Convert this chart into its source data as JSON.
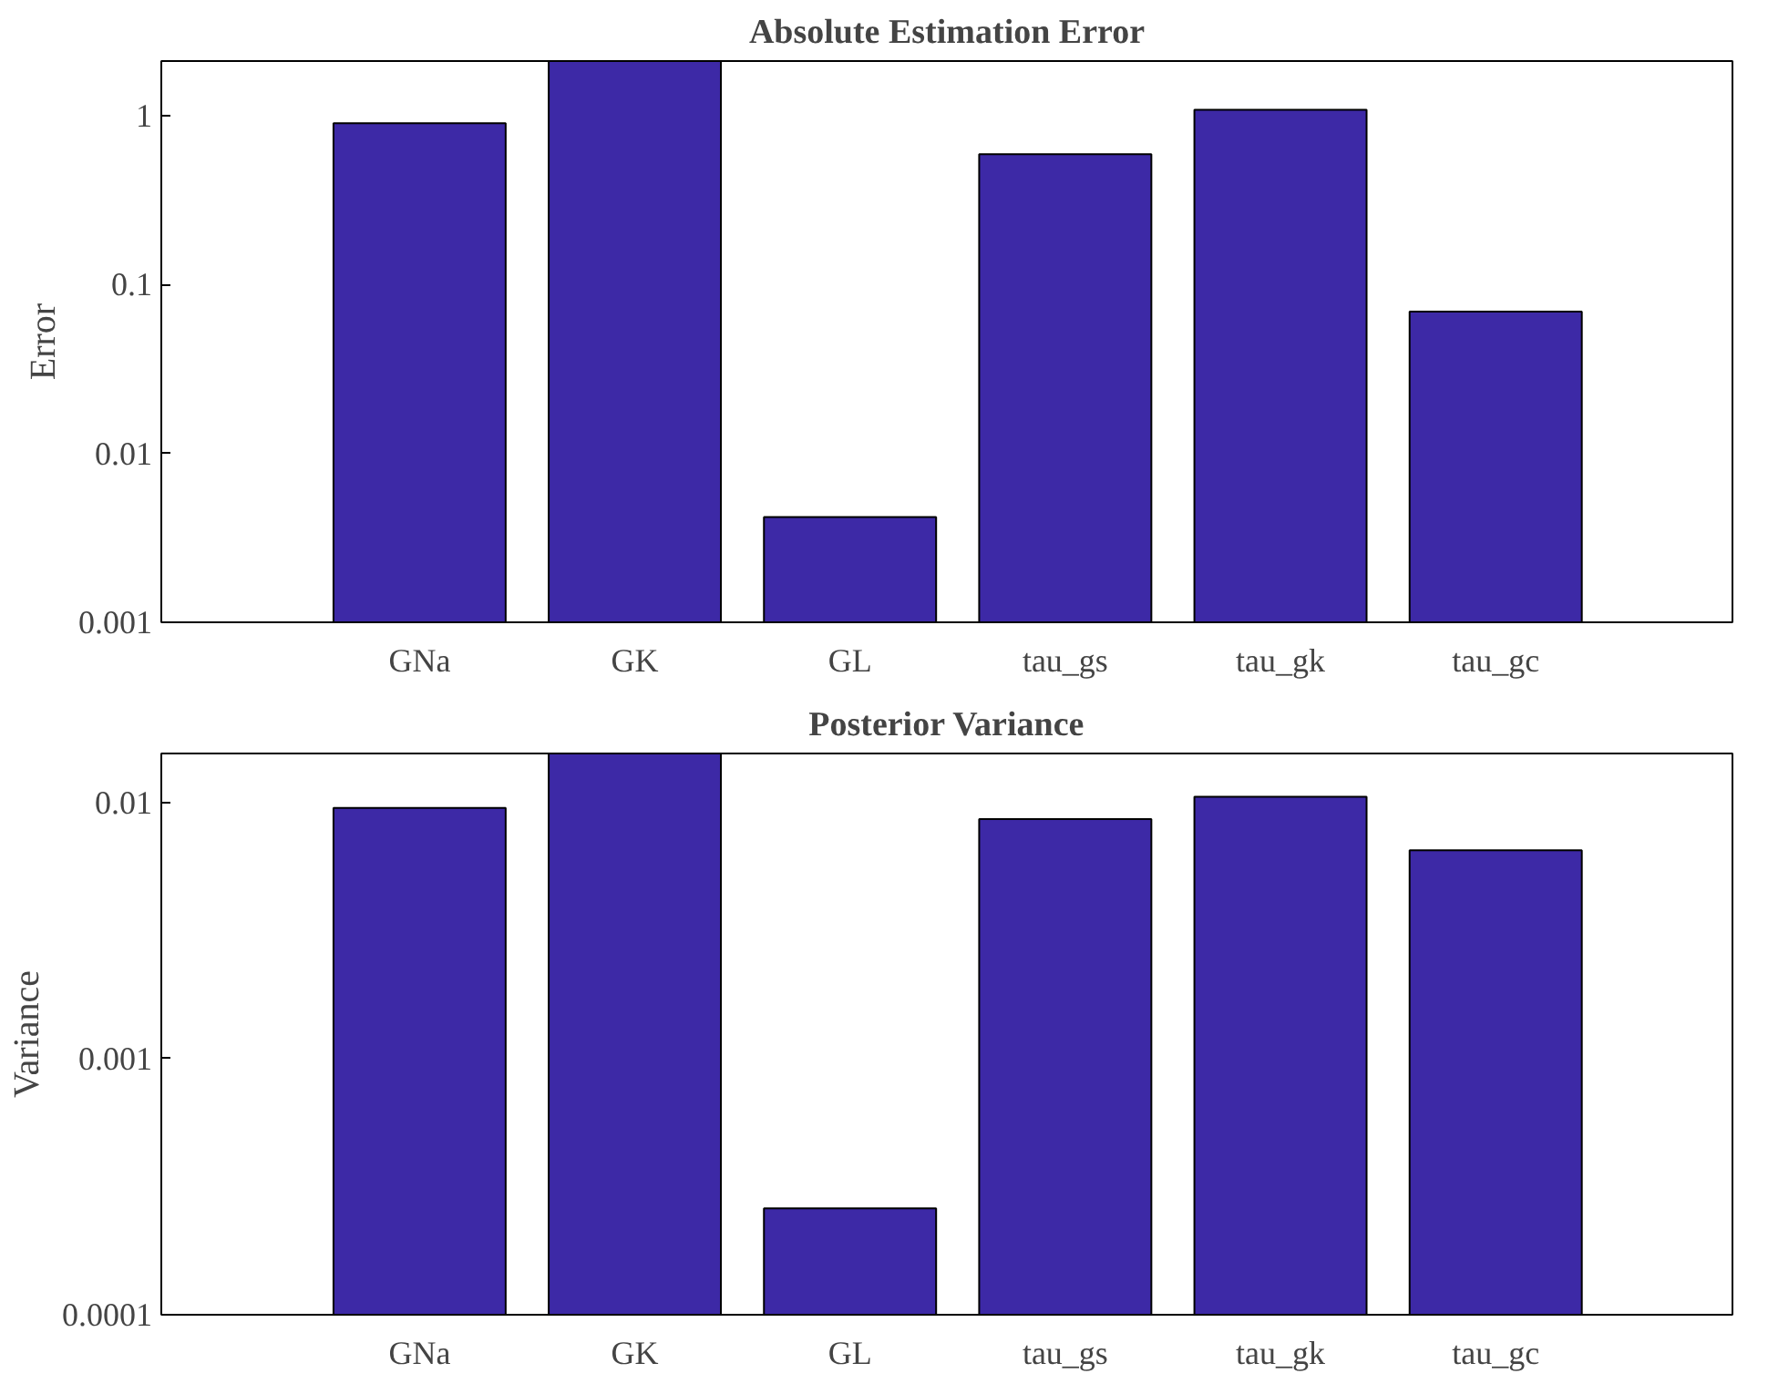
{
  "chart_data": [
    {
      "type": "bar",
      "title": "Absolute Estimation Error",
      "ylabel": "Error",
      "categories": [
        "GNa",
        "GK",
        "GL",
        "tau_gs",
        "tau_gk",
        "tau_gc"
      ],
      "values": [
        0.9,
        2.1,
        0.0042,
        0.59,
        1.08,
        0.069
      ],
      "color": "#3d29a6",
      "log": true,
      "ylim": [
        0.001,
        2.1
      ],
      "yticks": [
        0.001,
        0.01,
        0.1,
        1
      ],
      "grid": false
    },
    {
      "type": "bar",
      "title": "Posterior Variance",
      "ylabel": "Variance",
      "categories": [
        "GNa",
        "GK",
        "GL",
        "tau_gs",
        "tau_gk",
        "tau_gc"
      ],
      "values": [
        0.0095,
        0.0155,
        0.00026,
        0.0086,
        0.0105,
        0.0065
      ],
      "color": "#3d29a6",
      "log": true,
      "ylim": [
        0.0001,
        0.0155
      ],
      "yticks": [
        0.0001,
        0.001,
        0.01
      ],
      "grid": false
    }
  ]
}
